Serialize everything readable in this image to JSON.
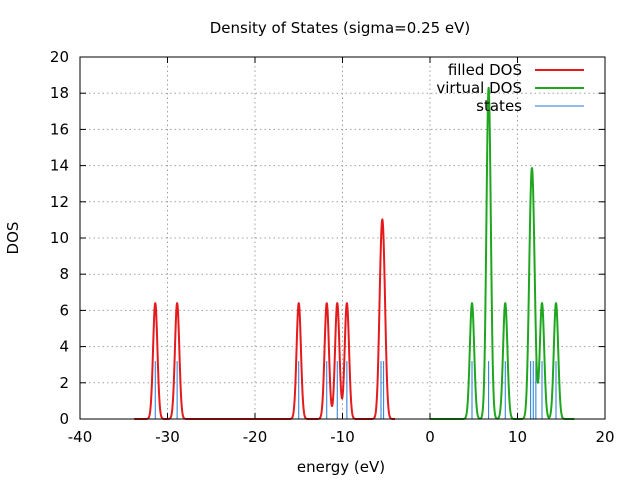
{
  "chart_data": {
    "type": "line",
    "title": "Density of States (sigma=0.25 eV)",
    "xlabel": "energy (eV)",
    "ylabel": "DOS",
    "xlim": [
      -40,
      20
    ],
    "ylim": [
      0,
      20
    ],
    "xticks": [
      "-40",
      "-30",
      "-20",
      "-10",
      "0",
      "10",
      "20"
    ],
    "yticks": [
      "0",
      "2",
      "4",
      "6",
      "8",
      "10",
      "12",
      "14",
      "16",
      "18",
      "20"
    ],
    "grid": true,
    "legend_position": "top-right",
    "series": [
      {
        "name": "filled DOS",
        "kind": "gaussian_sum",
        "color": "#e41a1c",
        "x_range": [
          -33.8,
          -4.0
        ],
        "sigma": 0.25,
        "peaks": [
          {
            "e": -31.4,
            "h": 6.4
          },
          {
            "e": -28.9,
            "h": 6.4
          },
          {
            "e": -15.0,
            "h": 6.4
          },
          {
            "e": -11.8,
            "h": 6.4
          },
          {
            "e": -10.6,
            "h": 6.4
          },
          {
            "e": -9.5,
            "h": 6.4
          },
          {
            "e": -5.6,
            "h": 6.6
          },
          {
            "e": -5.3,
            "h": 6.6
          }
        ]
      },
      {
        "name": "virtual DOS",
        "kind": "gaussian_sum",
        "color": "#1ea61e",
        "x_range": [
          0.0,
          16.5
        ],
        "sigma": 0.25,
        "peaks": [
          {
            "e": 4.8,
            "h": 6.4
          },
          {
            "e": 6.7,
            "h": 18.3
          },
          {
            "e": 8.6,
            "h": 6.4
          },
          {
            "e": 11.5,
            "h": 8.3
          },
          {
            "e": 11.8,
            "h": 8.3
          },
          {
            "e": 12.8,
            "h": 6.4
          },
          {
            "e": 14.4,
            "h": 6.4
          }
        ]
      },
      {
        "name": "states",
        "kind": "impulses",
        "color": "#1f78d4",
        "points": [
          {
            "x": -31.4,
            "y": 3.2
          },
          {
            "x": -28.9,
            "y": 3.2
          },
          {
            "x": -15.0,
            "y": 3.2
          },
          {
            "x": -11.8,
            "y": 3.2
          },
          {
            "x": -10.6,
            "y": 3.2
          },
          {
            "x": -9.5,
            "y": 3.2
          },
          {
            "x": -5.6,
            "y": 3.2
          },
          {
            "x": -5.3,
            "y": 3.2
          },
          {
            "x": 4.8,
            "y": 3.2
          },
          {
            "x": 6.7,
            "y": 3.2
          },
          {
            "x": 8.6,
            "y": 3.2
          },
          {
            "x": 11.5,
            "y": 3.2
          },
          {
            "x": 11.8,
            "y": 3.2
          },
          {
            "x": 12.1,
            "y": 3.2
          },
          {
            "x": 12.8,
            "y": 3.2
          },
          {
            "x": 14.4,
            "y": 3.2
          }
        ]
      }
    ]
  }
}
